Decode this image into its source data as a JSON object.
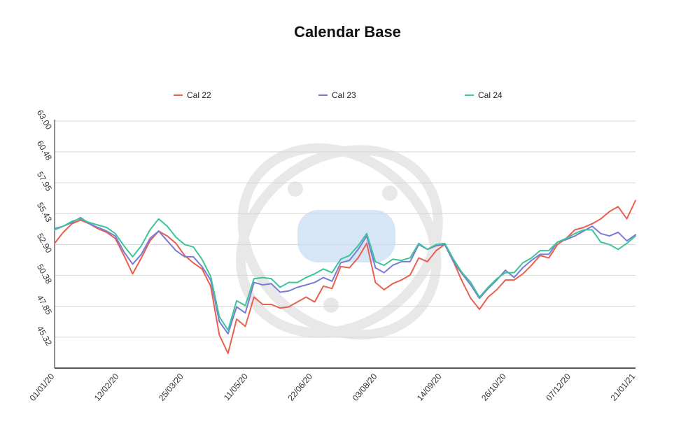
{
  "chart_data": {
    "type": "line",
    "title": "Calendar Base",
    "xlabel": "",
    "ylabel": "",
    "ylim": [
      42.79,
      63.0
    ],
    "y_ticks": [
      "63.00",
      "60.48",
      "57.95",
      "55.43",
      "52.90",
      "50.38",
      "47.85",
      "45.32"
    ],
    "x_ticks": [
      "01/01/20",
      "12/02/20",
      "25/03/20",
      "11/05/20",
      "22/06/20",
      "03/08/20",
      "14/09/20",
      "26/10/20",
      "07/12/20",
      "21/01/21"
    ],
    "grid": true,
    "legend_position": "top",
    "series": [
      {
        "name": "Cal 22",
        "color": "#e8604f",
        "values": [
          53.0,
          53.9,
          54.6,
          54.9,
          54.6,
          54.2,
          53.9,
          53.4,
          52.0,
          50.5,
          51.8,
          53.2,
          54.0,
          53.6,
          53.0,
          52.0,
          51.4,
          50.9,
          49.5,
          45.5,
          44.0,
          46.8,
          46.2,
          48.6,
          48.0,
          48.0,
          47.7,
          47.8,
          48.2,
          48.6,
          48.2,
          49.5,
          49.3,
          51.1,
          51.0,
          51.8,
          53.0,
          49.8,
          49.2,
          49.7,
          50.0,
          50.4,
          51.8,
          51.5,
          52.4,
          52.9,
          51.5,
          49.9,
          48.5,
          47.6,
          48.6,
          49.2,
          50.0,
          50.0,
          50.5,
          51.2,
          52.0,
          51.8,
          52.9,
          53.4,
          54.1,
          54.3,
          54.6,
          55.0,
          55.6,
          56.0,
          55.0,
          56.5
        ]
      },
      {
        "name": "Cal 23",
        "color": "#7a7bd6",
        "values": [
          54.2,
          54.4,
          54.7,
          55.1,
          54.6,
          54.3,
          54.0,
          53.6,
          52.3,
          51.3,
          52.1,
          53.4,
          54.0,
          53.2,
          52.4,
          51.9,
          51.9,
          51.1,
          50.0,
          46.6,
          45.6,
          47.8,
          47.3,
          49.8,
          49.6,
          49.7,
          49.0,
          49.1,
          49.4,
          49.6,
          49.8,
          50.2,
          49.9,
          51.4,
          51.6,
          52.5,
          53.6,
          51.0,
          50.6,
          51.2,
          51.5,
          51.5,
          52.9,
          52.5,
          52.8,
          52.9,
          51.5,
          50.5,
          49.6,
          48.5,
          49.3,
          50.0,
          50.8,
          50.2,
          51.0,
          51.6,
          52.1,
          52.1,
          53.1,
          53.3,
          53.6,
          54.0,
          54.4,
          53.8,
          53.6,
          53.9,
          53.2,
          53.7
        ]
      },
      {
        "name": "Cal 24",
        "color": "#3dc499",
        "values": [
          54.1,
          54.4,
          54.8,
          55.0,
          54.7,
          54.5,
          54.3,
          53.8,
          52.8,
          51.9,
          52.8,
          54.1,
          55.0,
          54.4,
          53.5,
          52.9,
          52.7,
          51.7,
          50.3,
          47.0,
          45.9,
          48.3,
          47.9,
          50.1,
          50.2,
          50.1,
          49.4,
          49.8,
          49.8,
          50.2,
          50.5,
          50.9,
          50.6,
          51.7,
          52.0,
          52.8,
          53.8,
          51.5,
          51.2,
          51.7,
          51.6,
          51.8,
          53.0,
          52.5,
          52.9,
          53.0,
          51.7,
          50.6,
          49.8,
          48.6,
          49.4,
          50.1,
          50.6,
          50.6,
          51.4,
          51.8,
          52.4,
          52.4,
          53.1,
          53.4,
          53.8,
          54.1,
          54.1,
          53.1,
          52.9,
          52.5,
          53.0,
          53.6
        ]
      }
    ]
  }
}
